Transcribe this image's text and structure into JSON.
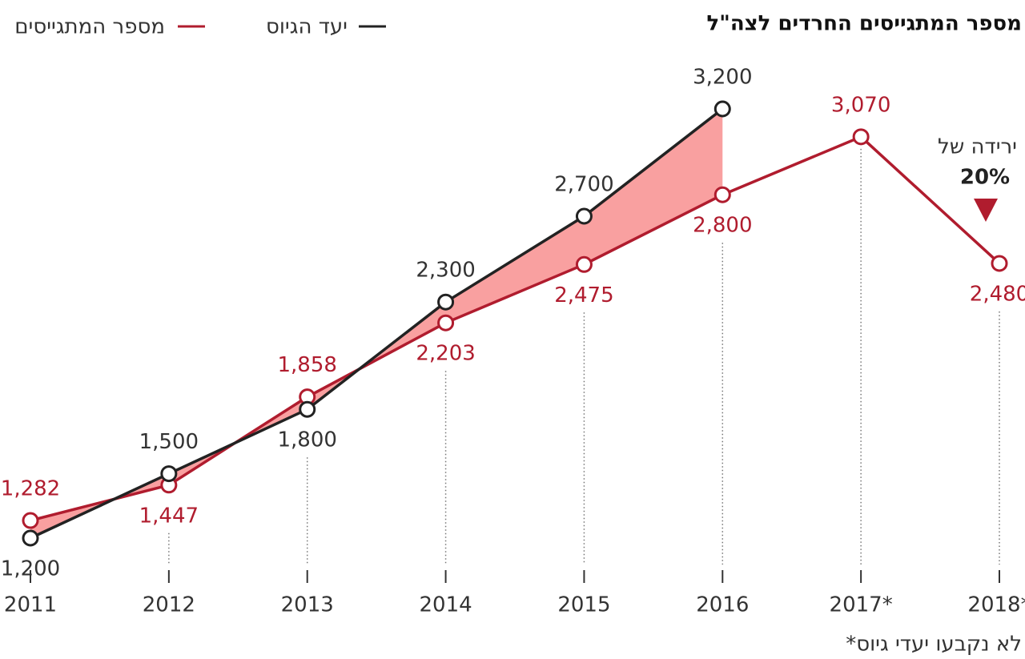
{
  "chart_data": {
    "type": "line",
    "title": "מספר המתגייסים החרדים לצה\"ל",
    "categories": [
      "2011",
      "2012",
      "2013",
      "2014",
      "2015",
      "2016",
      "2017*",
      "2018*"
    ],
    "series": [
      {
        "name": "יעד הגיוס",
        "color": "#222222",
        "values": [
          1200,
          1500,
          1800,
          2300,
          2700,
          3200,
          null,
          null
        ],
        "value_labels": [
          "1,200",
          "1,500",
          "1,800",
          "2,300",
          "2,700",
          "3,200",
          null,
          null
        ]
      },
      {
        "name": "מספר המתגייסים",
        "color": "#b01c2e",
        "values": [
          1282,
          1447,
          1858,
          2203,
          2475,
          2800,
          3070,
          2480
        ],
        "value_labels": [
          "1,282",
          "1,447",
          "1,858",
          "2,203",
          "2,475",
          "2,800",
          "3,070",
          "2,480"
        ]
      }
    ],
    "ylim": [
      1000,
      3400
    ],
    "area_color": "#f9a0a0",
    "annotation": {
      "text": "ירידה של",
      "highlight": "20%"
    },
    "footnote": "*לא נקבעו יעדי גיוס"
  }
}
